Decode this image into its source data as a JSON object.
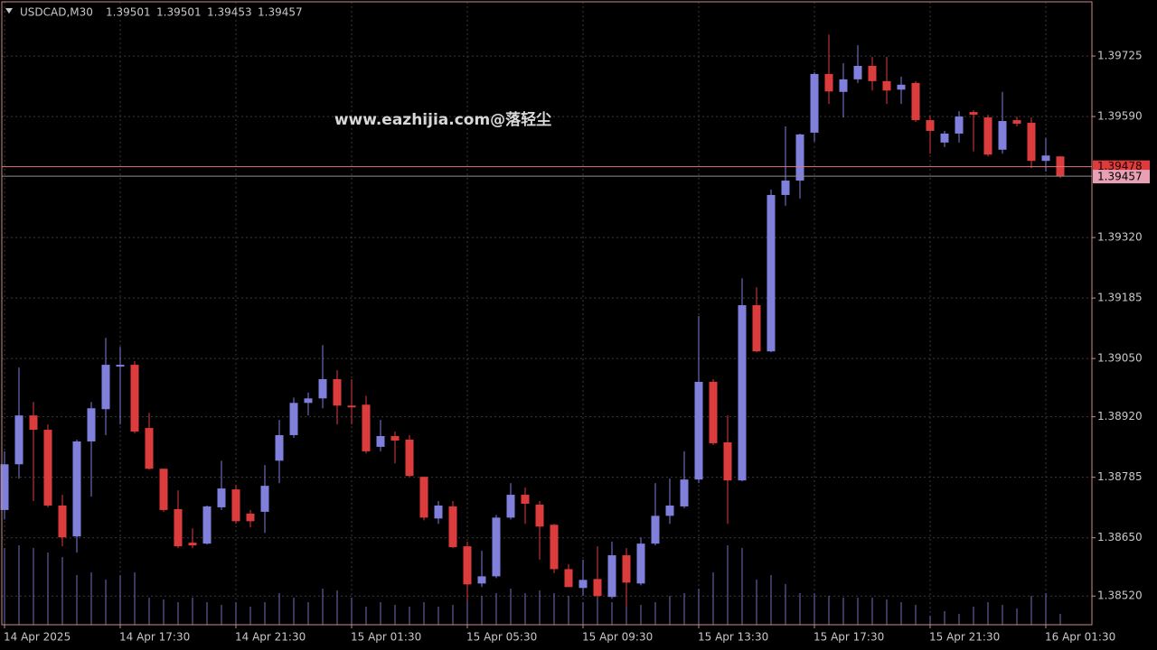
{
  "chart_data": {
    "type": "candlestick",
    "symbol": "USDCAD,M30",
    "watermark": "www.eazhijia.com@落轻尘",
    "bull_color": "#8080dc",
    "bear_color": "#dc3c3c",
    "volume_color": "#7070c0",
    "grid": true,
    "ylim": [
      1.38456,
      1.39846
    ],
    "yticks": [
      1.39725,
      {
        "value": 1.3959,
        "label": "1.39590"
      },
      {
        "value": 1.3932,
        "label": "1.39320"
      },
      1.39185,
      {
        "value": 1.3905,
        "label": "1.39050"
      },
      {
        "value": 1.3892,
        "label": "1.38920"
      },
      1.38785,
      {
        "value": 1.3865,
        "label": "1.38650"
      },
      {
        "value": 1.3852,
        "label": "1.38520"
      }
    ],
    "xticks": [
      {
        "value": 0,
        "label": "14 Apr 2025"
      },
      {
        "value": 8,
        "label": "14 Apr 17:30"
      },
      {
        "value": 16,
        "label": "14 Apr 21:30"
      },
      {
        "value": 24,
        "label": "15 Apr 01:30"
      },
      {
        "value": 32,
        "label": "15 Apr 05:30"
      },
      {
        "value": 40,
        "label": "15 Apr 09:30"
      },
      {
        "value": 48,
        "label": "15 Apr 13:30"
      },
      {
        "value": 56,
        "label": "15 Apr 17:30"
      },
      {
        "value": 64,
        "label": "15 Apr 21:30"
      },
      {
        "value": 72,
        "label": "16 Apr 01:30"
      }
    ],
    "ask_line": 1.39478,
    "bid_line": 1.39457,
    "open": [
      1.38712,
      1.38814,
      1.38923,
      1.38891,
      1.38722,
      1.38653,
      1.38865,
      1.38937,
      1.39032,
      1.39036,
      1.38895,
      1.38804,
      1.38714,
      1.38639,
      1.38637,
      1.38718,
      1.38758,
      1.38704,
      1.38708,
      1.38822,
      1.38879,
      1.38951,
      1.38961,
      1.39004,
      1.38945,
      1.38947,
      1.38853,
      1.38877,
      1.38869,
      1.38786,
      1.38693,
      1.3872,
      1.38631,
      1.38548,
      1.38564,
      1.38695,
      1.38746,
      1.38724,
      1.38679,
      1.3858,
      1.38538,
      1.38558,
      1.38518,
      1.38611,
      1.38548,
      1.38637,
      1.38699,
      1.3872,
      1.3878,
      1.38998,
      1.38863,
      1.38778,
      1.39169,
      1.39066,
      1.39415,
      1.39447,
      1.39554,
      1.39685,
      1.39645,
      1.39673,
      1.39703,
      1.39669,
      1.3965,
      1.39665,
      1.39582,
      1.39532,
      1.39552,
      1.396,
      1.39588,
      1.39516,
      1.39582,
      1.39576,
      1.39491,
      1.39501
    ],
    "high": [
      1.38843,
      1.3903,
      1.38953,
      1.38903,
      1.38746,
      1.38869,
      1.38953,
      1.39096,
      1.39076,
      1.39044,
      1.38929,
      1.38804,
      1.38756,
      1.38671,
      1.38722,
      1.38822,
      1.38768,
      1.38712,
      1.38812,
      1.38913,
      1.38963,
      1.38974,
      1.3908,
      1.39024,
      1.39004,
      1.38967,
      1.38913,
      1.38887,
      1.38879,
      1.38786,
      1.38732,
      1.38732,
      1.38641,
      1.38621,
      1.38701,
      1.38772,
      1.38762,
      1.38732,
      1.38681,
      1.38591,
      1.38601,
      1.38631,
      1.38641,
      1.38627,
      1.38651,
      1.38772,
      1.38782,
      1.38843,
      1.39145,
      1.39004,
      1.38923,
      1.39229,
      1.39209,
      1.39427,
      1.39568,
      1.39552,
      1.39689,
      1.39773,
      1.39709,
      1.39749,
      1.39723,
      1.39723,
      1.39679,
      1.39669,
      1.39592,
      1.39558,
      1.39602,
      1.39604,
      1.39594,
      1.39645,
      1.3959,
      1.39588,
      1.39542,
      1.39501
    ],
    "low": [
      1.38691,
      1.38782,
      1.38732,
      1.38718,
      1.38631,
      1.38617,
      1.38742,
      1.38879,
      1.38903,
      1.38883,
      1.38802,
      1.38708,
      1.38627,
      1.38627,
      1.38635,
      1.38712,
      1.38681,
      1.38673,
      1.38661,
      1.38772,
      1.38873,
      1.38923,
      1.38939,
      1.38903,
      1.38903,
      1.38838,
      1.38843,
      1.38816,
      1.38786,
      1.38689,
      1.38681,
      1.38627,
      1.3851,
      1.3854,
      1.3856,
      1.38691,
      1.38681,
      1.38601,
      1.38571,
      1.3854,
      1.3852,
      1.38516,
      1.38514,
      1.38496,
      1.38544,
      1.38633,
      1.38681,
      1.38716,
      1.38772,
      1.38857,
      1.38681,
      1.38776,
      1.39064,
      1.39064,
      1.39391,
      1.39407,
      1.39534,
      1.39618,
      1.39588,
      1.39665,
      1.39648,
      1.39618,
      1.39618,
      1.39578,
      1.39507,
      1.39522,
      1.39532,
      1.39512,
      1.39501,
      1.39507,
      1.39568,
      1.39475,
      1.39467,
      1.39453
    ],
    "close": [
      1.38814,
      1.38923,
      1.38891,
      1.38722,
      1.38651,
      1.38865,
      1.38939,
      1.39036,
      1.39036,
      1.38887,
      1.38804,
      1.38712,
      1.38631,
      1.38633,
      1.3872,
      1.3876,
      1.38687,
      1.38687,
      1.38766,
      1.38879,
      1.38951,
      1.38961,
      1.39004,
      1.38945,
      1.38941,
      1.38843,
      1.38877,
      1.38867,
      1.38788,
      1.38695,
      1.38722,
      1.38629,
      1.38546,
      1.38564,
      1.38695,
      1.38746,
      1.38726,
      1.38675,
      1.3858,
      1.3854,
      1.38556,
      1.3852,
      1.38611,
      1.3855,
      1.38637,
      1.38699,
      1.38722,
      1.3878,
      1.38998,
      1.38861,
      1.38778,
      1.39169,
      1.39066,
      1.39415,
      1.39447,
      1.3955,
      1.39685,
      1.39646,
      1.39673,
      1.39703,
      1.39669,
      1.39648,
      1.39661,
      1.39582,
      1.39558,
      1.39552,
      1.3959,
      1.39594,
      1.39505,
      1.3958,
      1.39574,
      1.39491,
      1.39503,
      1.39457
    ],
    "volumes": [
      85,
      88,
      85,
      80,
      75,
      55,
      58,
      50,
      55,
      58,
      30,
      28,
      25,
      30,
      25,
      22,
      25,
      20,
      25,
      35,
      30,
      25,
      40,
      38,
      30,
      20,
      25,
      22,
      20,
      25,
      20,
      22,
      30,
      32,
      35,
      40,
      35,
      38,
      35,
      32,
      25,
      30,
      25,
      28,
      22,
      25,
      32,
      35,
      40,
      58,
      88,
      85,
      50,
      55,
      45,
      35,
      35,
      32,
      30,
      30,
      30,
      28,
      25,
      22,
      10,
      15,
      12,
      20,
      25,
      22,
      18,
      32,
      35,
      12
    ]
  }
}
